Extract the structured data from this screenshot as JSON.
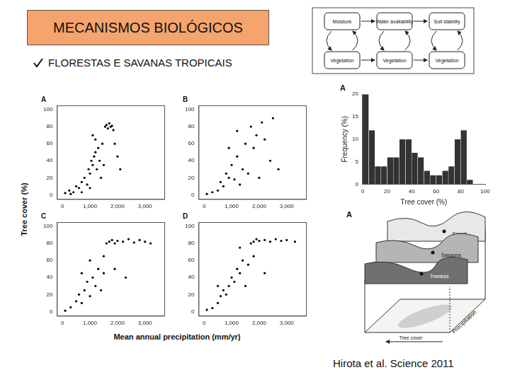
{
  "slide": {
    "title": "MECANISMOS BIOLÓGICOS",
    "bullet": "FLORESTAS E SAVANAS TROPICAIS",
    "citation": "Hirota et al. Science 2011"
  },
  "feedback_diagram": {
    "top": [
      "Moisture",
      "Water availability",
      "Soil stability"
    ],
    "bottom": [
      "Vegetation",
      "Vegetation",
      "Vegetation"
    ]
  },
  "landscape_diagram": {
    "panel": "A",
    "layers": [
      "Forest",
      "Savanna",
      "Treeless"
    ],
    "axes": [
      "Tree cover",
      "Precipitation"
    ]
  },
  "shared_axes": {
    "x_label": "Mean annual precipitation (mm/yr)",
    "y_label": "Tree cover (%)"
  },
  "chart_data": [
    {
      "type": "scatter",
      "title": "A",
      "color": "#000000",
      "marker": "circle",
      "grid": false,
      "xlim": [
        -200,
        3700
      ],
      "ylim": [
        -5,
        105
      ],
      "xticks": [
        0,
        1000,
        2000,
        3000
      ],
      "yticks": [
        0,
        20,
        40,
        60,
        80,
        100
      ],
      "x": [
        100,
        250,
        400,
        500,
        600,
        700,
        800,
        900,
        950,
        1000,
        1050,
        1100,
        1150,
        1200,
        1250,
        1300,
        1350,
        1400,
        1450,
        1500,
        1550,
        1600,
        1650,
        1700,
        1750,
        1800,
        1850,
        1900,
        2000,
        2100,
        1200,
        1100,
        300,
        700,
        1000
      ],
      "values": [
        2,
        5,
        3,
        10,
        8,
        15,
        20,
        12,
        30,
        25,
        40,
        35,
        45,
        50,
        30,
        55,
        40,
        20,
        60,
        35,
        80,
        82,
        78,
        84,
        80,
        81,
        76,
        60,
        45,
        30,
        65,
        70,
        1,
        3,
        8
      ]
    },
    {
      "type": "scatter",
      "title": "B",
      "color": "#000000",
      "marker": "circle",
      "grid": false,
      "xlim": [
        -200,
        3700
      ],
      "ylim": [
        -5,
        105
      ],
      "xticks": [
        0,
        1000,
        2000,
        3000
      ],
      "yticks": [
        0,
        20,
        40,
        60,
        80,
        100
      ],
      "x": [
        100,
        300,
        500,
        600,
        700,
        800,
        900,
        1000,
        1100,
        1200,
        1300,
        1400,
        1500,
        1600,
        1700,
        1800,
        1900,
        2000,
        2100,
        2200,
        2400,
        2500,
        2700,
        1200,
        900
      ],
      "values": [
        1,
        3,
        5,
        15,
        10,
        25,
        20,
        35,
        18,
        45,
        12,
        30,
        60,
        25,
        80,
        55,
        70,
        20,
        85,
        65,
        40,
        90,
        30,
        75,
        55
      ]
    },
    {
      "type": "scatter",
      "title": "C",
      "color": "#000000",
      "marker": "circle",
      "grid": false,
      "xlim": [
        -200,
        3700
      ],
      "ylim": [
        -5,
        105
      ],
      "xticks": [
        0,
        1000,
        2000,
        3000
      ],
      "yticks": [
        0,
        20,
        40,
        60,
        80,
        100
      ],
      "x": [
        100,
        300,
        500,
        600,
        700,
        800,
        900,
        1000,
        1100,
        1200,
        1300,
        1400,
        1500,
        1600,
        1700,
        1800,
        1900,
        2000,
        2200,
        2400,
        2600,
        2800,
        3000,
        3200,
        1500,
        1900,
        2300,
        1000,
        700
      ],
      "values": [
        1,
        5,
        12,
        20,
        10,
        25,
        35,
        18,
        40,
        30,
        50,
        25,
        45,
        80,
        82,
        84,
        80,
        83,
        82,
        85,
        81,
        84,
        82,
        80,
        65,
        50,
        40,
        60,
        45
      ]
    },
    {
      "type": "scatter",
      "title": "D",
      "color": "#000000",
      "marker": "circle",
      "grid": false,
      "xlim": [
        -200,
        3700
      ],
      "ylim": [
        -5,
        105
      ],
      "xticks": [
        0,
        1000,
        2000,
        3000
      ],
      "yticks": [
        0,
        20,
        40,
        60,
        80,
        100
      ],
      "x": [
        100,
        300,
        500,
        600,
        700,
        800,
        900,
        1000,
        1100,
        1200,
        1300,
        1400,
        1500,
        1600,
        1700,
        1800,
        1900,
        2000,
        2200,
        2400,
        2600,
        2800,
        3000,
        3300,
        1800,
        2200,
        1300,
        500
      ],
      "values": [
        2,
        4,
        10,
        18,
        25,
        20,
        30,
        40,
        35,
        50,
        45,
        60,
        30,
        55,
        80,
        82,
        85,
        83,
        84,
        82,
        85,
        83,
        84,
        82,
        65,
        45,
        75,
        30
      ]
    },
    {
      "type": "histogram",
      "title": "A",
      "color": "#333333",
      "grid": false,
      "xlabel": "Tree cover (%)",
      "ylabel": "Frequency (%)",
      "xlim": [
        0,
        100
      ],
      "ylim": [
        0,
        20
      ],
      "xticks": [
        0,
        20,
        40,
        60,
        80,
        100
      ],
      "yticks": [
        0,
        5,
        10,
        15,
        20
      ],
      "bins": [
        0,
        5,
        10,
        15,
        20,
        25,
        30,
        35,
        40,
        45,
        50,
        55,
        60,
        65,
        70,
        75,
        80,
        85,
        90
      ],
      "values": [
        20,
        12,
        4,
        4,
        6,
        6,
        10,
        10,
        7,
        6,
        3,
        2,
        2,
        3,
        4,
        10,
        12,
        1
      ]
    }
  ]
}
